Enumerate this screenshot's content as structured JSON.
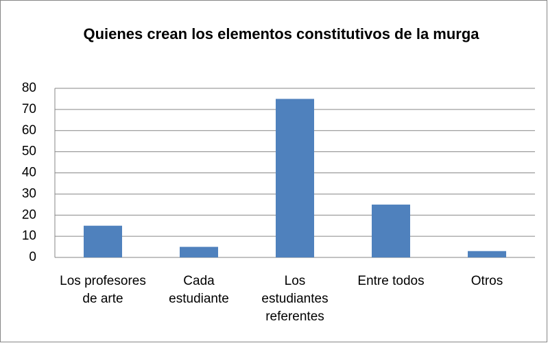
{
  "chart_data": {
    "type": "bar",
    "title": "Quienes crean los elementos constitutivos de la murga",
    "categories": [
      "Los profesores de arte",
      "Cada estudiante",
      "Los estudiantes referentes",
      "Entre todos",
      "Otros"
    ],
    "values": [
      15,
      5,
      75,
      25,
      3
    ],
    "color": "#4f81bd",
    "ylim": [
      0,
      80
    ],
    "yticks": [
      0,
      10,
      20,
      30,
      40,
      50,
      60,
      70,
      80
    ],
    "grid": true
  }
}
